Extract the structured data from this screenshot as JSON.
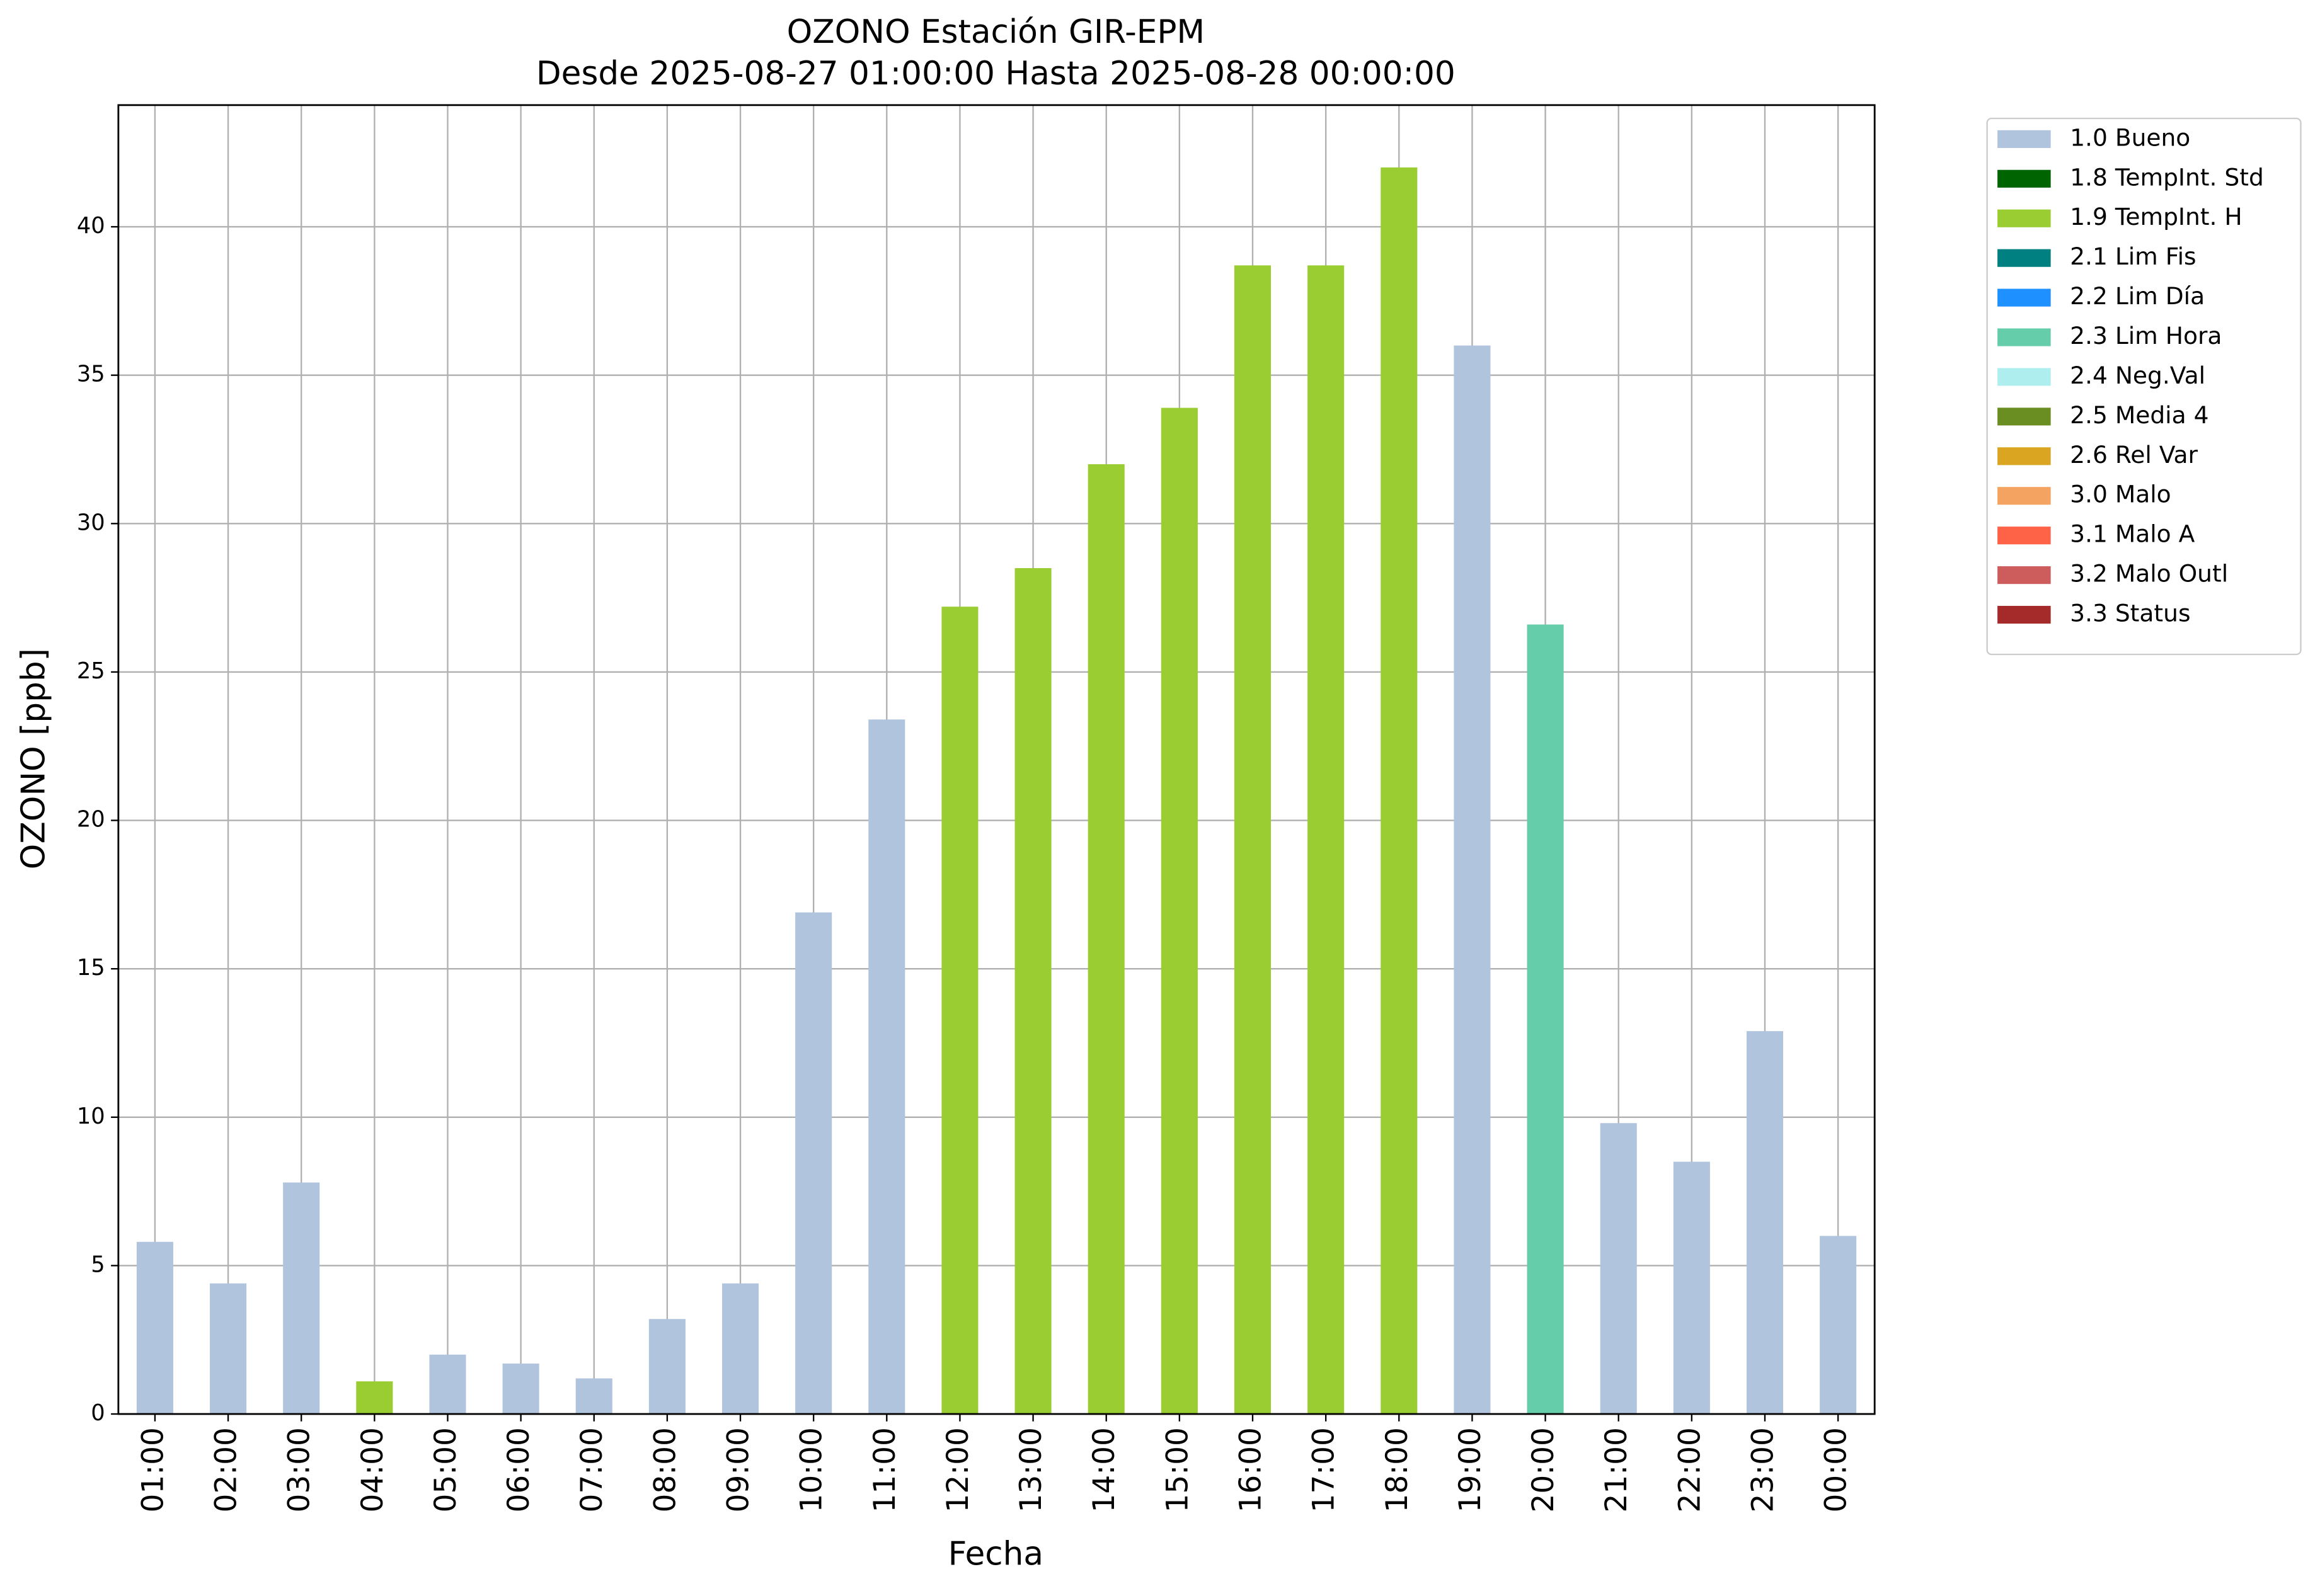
{
  "chart_data": {
    "type": "stacked_bar",
    "title": "OZONO Estación GIR-EPM",
    "subtitle": "Desde 2025-08-27 01:00:00 Hasta 2025-08-28 00:00:00",
    "x_label": "Fecha",
    "y_label": "OZONO [ppb]",
    "categories": [
      "01:00",
      "02:00",
      "03:00",
      "04:00",
      "05:00",
      "06:00",
      "07:00",
      "08:00",
      "09:00",
      "10:00",
      "11:00",
      "12:00",
      "13:00",
      "14:00",
      "15:00",
      "16:00",
      "17:00",
      "18:00",
      "19:00",
      "20:00",
      "21:00",
      "22:00",
      "23:00",
      "00:00"
    ],
    "series": [
      {
        "name": "1.0 Bueno",
        "color": "#b0c4de",
        "values": [
          5.8,
          4.4,
          7.8,
          null,
          2.0,
          1.7,
          1.2,
          3.2,
          4.4,
          16.9,
          23.4,
          null,
          null,
          null,
          null,
          null,
          null,
          null,
          36.0,
          null,
          9.8,
          8.5,
          12.9,
          6.0
        ]
      },
      {
        "name": "1.8 TempInt. Std",
        "color": "#006400",
        "values": [
          null,
          null,
          null,
          null,
          null,
          null,
          null,
          null,
          null,
          null,
          null,
          null,
          null,
          null,
          null,
          null,
          null,
          null,
          null,
          null,
          null,
          null,
          null,
          null
        ]
      },
      {
        "name": "1.9 TempInt. H",
        "color": "#9acd32",
        "values": [
          null,
          null,
          null,
          1.1,
          null,
          null,
          null,
          null,
          null,
          null,
          null,
          27.2,
          28.5,
          32.0,
          33.9,
          38.7,
          38.7,
          42.0,
          null,
          null,
          null,
          null,
          null,
          null
        ]
      },
      {
        "name": "2.1 Lim Fis",
        "color": "#008080",
        "values": [
          null,
          null,
          null,
          null,
          null,
          null,
          null,
          null,
          null,
          null,
          null,
          null,
          null,
          null,
          null,
          null,
          null,
          null,
          null,
          null,
          null,
          null,
          null,
          null
        ]
      },
      {
        "name": "2.2 Lim Día",
        "color": "#1e90ff",
        "values": [
          null,
          null,
          null,
          null,
          null,
          null,
          null,
          null,
          null,
          null,
          null,
          null,
          null,
          null,
          null,
          null,
          null,
          null,
          null,
          null,
          null,
          null,
          null,
          null
        ]
      },
      {
        "name": "2.3 Lim Hora",
        "color": "#66cdaa",
        "values": [
          null,
          null,
          null,
          null,
          null,
          null,
          null,
          null,
          null,
          null,
          null,
          null,
          null,
          null,
          null,
          null,
          null,
          null,
          null,
          26.6,
          null,
          null,
          null,
          null
        ]
      },
      {
        "name": "2.4 Neg.Val",
        "color": "#afeeee",
        "values": [
          null,
          null,
          null,
          null,
          null,
          null,
          null,
          null,
          null,
          null,
          null,
          null,
          null,
          null,
          null,
          null,
          null,
          null,
          null,
          null,
          null,
          null,
          null,
          null
        ]
      },
      {
        "name": "2.5 Media 4",
        "color": "#6b8e23",
        "values": [
          null,
          null,
          null,
          null,
          null,
          null,
          null,
          null,
          null,
          null,
          null,
          null,
          null,
          null,
          null,
          null,
          null,
          null,
          null,
          null,
          null,
          null,
          null,
          null
        ]
      },
      {
        "name": "2.6 Rel Var",
        "color": "#daa520",
        "values": [
          null,
          null,
          null,
          null,
          null,
          null,
          null,
          null,
          null,
          null,
          null,
          null,
          null,
          null,
          null,
          null,
          null,
          null,
          null,
          null,
          null,
          null,
          null,
          null
        ]
      },
      {
        "name": "3.0 Malo",
        "color": "#f4a460",
        "values": [
          null,
          null,
          null,
          null,
          null,
          null,
          null,
          null,
          null,
          null,
          null,
          null,
          null,
          null,
          null,
          null,
          null,
          null,
          null,
          null,
          null,
          null,
          null,
          null
        ]
      },
      {
        "name": "3.1 Malo A",
        "color": "#ff6347",
        "values": [
          null,
          null,
          null,
          null,
          null,
          null,
          null,
          null,
          null,
          null,
          null,
          null,
          null,
          null,
          null,
          null,
          null,
          null,
          null,
          null,
          null,
          null,
          null,
          null
        ]
      },
      {
        "name": "3.2 Malo Outl",
        "color": "#cd5c5c",
        "values": [
          null,
          null,
          null,
          null,
          null,
          null,
          null,
          null,
          null,
          null,
          null,
          null,
          null,
          null,
          null,
          null,
          null,
          null,
          null,
          null,
          null,
          null,
          null,
          null
        ]
      },
      {
        "name": "3.3 Status",
        "color": "#a52a2a",
        "values": [
          null,
          null,
          null,
          null,
          null,
          null,
          null,
          null,
          null,
          null,
          null,
          null,
          null,
          null,
          null,
          null,
          null,
          null,
          null,
          null,
          null,
          null,
          null,
          null
        ]
      }
    ],
    "ylim": [
      0,
      44.1
    ],
    "yticks": [
      0,
      5,
      10,
      15,
      20,
      25,
      30,
      35,
      40
    ],
    "grid": true,
    "legend": "outside-right"
  }
}
